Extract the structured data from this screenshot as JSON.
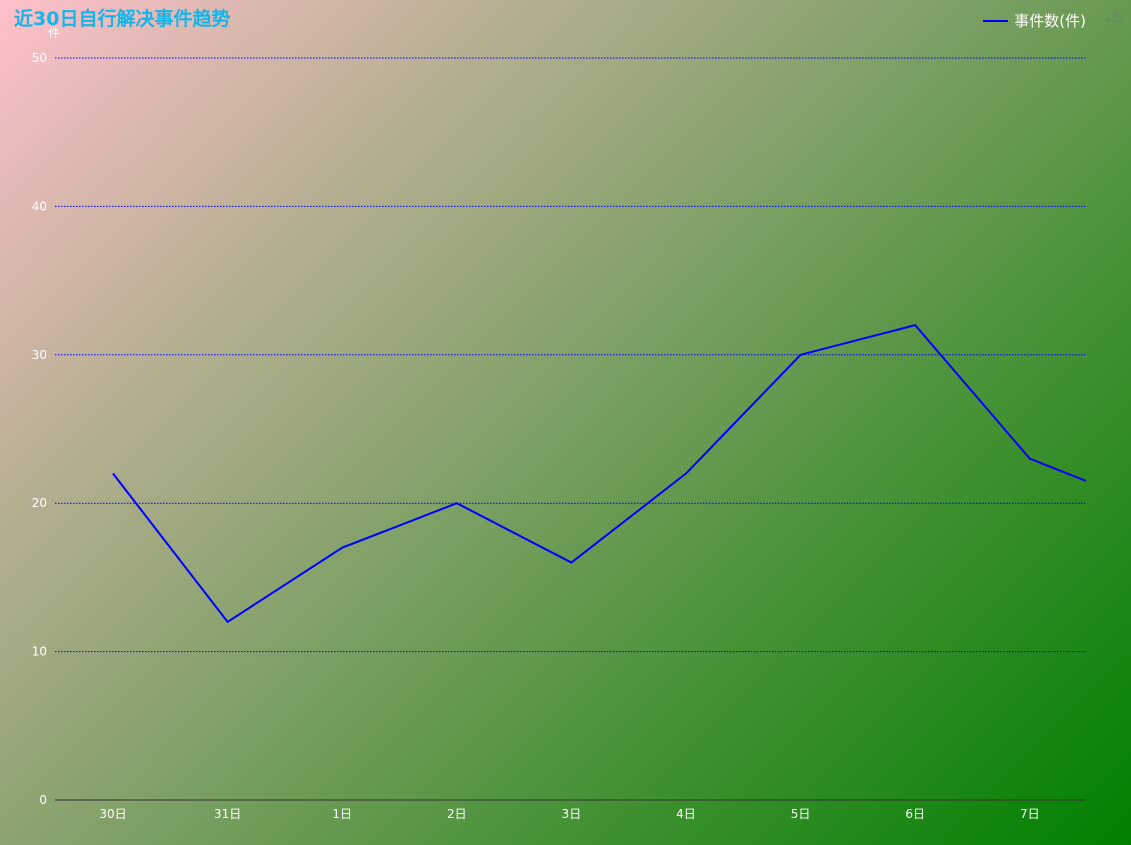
{
  "chart_data": {
    "type": "line",
    "title": "近30日自行解决事件趋势",
    "ylabel": "件",
    "xlabel": "",
    "categories": [
      "30日",
      "31日",
      "1日",
      "2日",
      "3日",
      "4日",
      "5日",
      "6日",
      "7日",
      ""
    ],
    "series": [
      {
        "name": "事件数(件)",
        "values": [
          22,
          12,
          17,
          20,
          16,
          22,
          30,
          32,
          23,
          21.5
        ],
        "color": "#0000ff"
      }
    ],
    "ylim": [
      0,
      50
    ],
    "yticks": [
      0,
      10,
      20,
      30,
      40,
      50
    ],
    "grid": true,
    "grid_color": "#0000ff",
    "legend_position": "top-right"
  },
  "toolbar": {
    "download_icon": "download-icon"
  },
  "colors": {
    "title": "#13b5ea",
    "text": "#ffffff"
  }
}
